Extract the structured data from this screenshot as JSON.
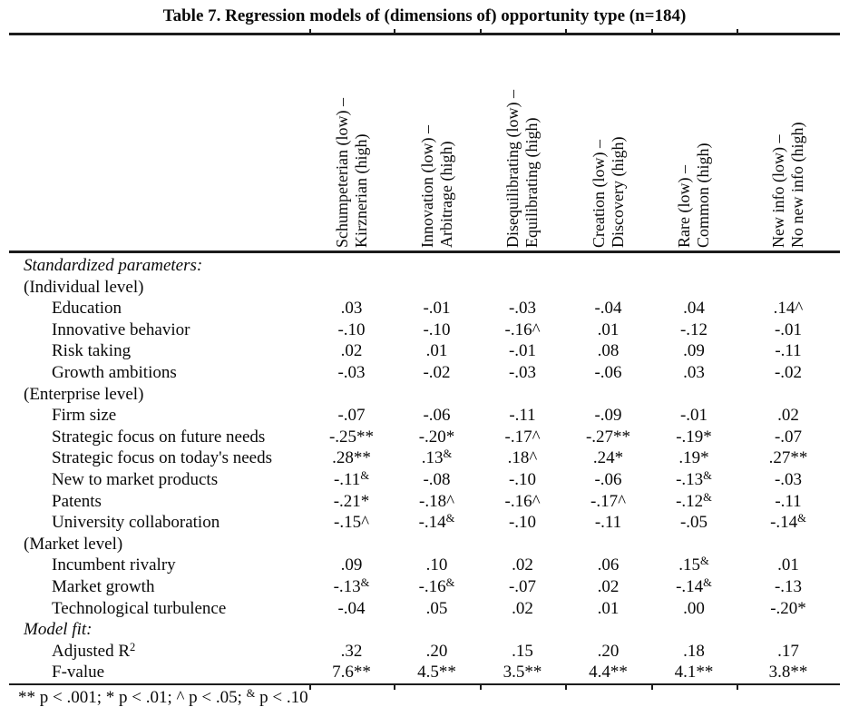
{
  "title": "Table 7. Regression models of (dimensions of) opportunity type (n=184)",
  "table": {
    "column_headers": [
      {
        "line1": "Schumpeterian (low) –",
        "line2": "Kirznerian (high)"
      },
      {
        "line1": "Innovation (low) –",
        "line2": "Arbitrage (high)"
      },
      {
        "line1": "Disequilibrating (low) –",
        "line2": "Equilibrating (high)"
      },
      {
        "line1": "Creation (low) –",
        "line2": "Discovery (high)"
      },
      {
        "line1": "Rare (low) –",
        "line2": "Common (high)"
      },
      {
        "line1": "New info (low) –",
        "line2": "No new info (high)"
      }
    ],
    "rows": [
      {
        "label": "Standardized parameters:",
        "type": "group",
        "values": []
      },
      {
        "label": "(Individual level)",
        "type": "level",
        "values": []
      },
      {
        "label": "Education",
        "type": "var",
        "values": [
          ".03",
          "-.01",
          "-.03",
          "-.04",
          ".04",
          ".14^"
        ]
      },
      {
        "label": "Innovative behavior",
        "type": "var",
        "values": [
          "-.10",
          "-.10",
          "-.16^",
          ".01",
          "-.12",
          "-.01"
        ]
      },
      {
        "label": "Risk taking",
        "type": "var",
        "values": [
          ".02",
          ".01",
          "-.01",
          ".08",
          ".09",
          "-.11"
        ]
      },
      {
        "label": "Growth ambitions",
        "type": "var",
        "values": [
          "-.03",
          "-.02",
          "-.03",
          "-.06",
          ".03",
          "-.02"
        ]
      },
      {
        "label": "(Enterprise level)",
        "type": "level",
        "values": []
      },
      {
        "label": "Firm size",
        "type": "var",
        "values": [
          "-.07",
          "-.06",
          "-.11",
          "-.09",
          "-.01",
          ".02"
        ]
      },
      {
        "label": "Strategic focus on future needs",
        "type": "var",
        "values": [
          "-.25**",
          "-.20*",
          "-.17^",
          "-.27**",
          "-.19*",
          "-.07"
        ]
      },
      {
        "label": "Strategic focus on today's needs",
        "type": "var",
        "values": [
          ".28**",
          ".13&",
          ".18^",
          ".24*",
          ".19*",
          ".27**"
        ]
      },
      {
        "label": "New to market products",
        "type": "var",
        "values": [
          "-.11&",
          "-.08",
          "-.10",
          "-.06",
          "-.13&",
          "-.03"
        ]
      },
      {
        "label": "Patents",
        "type": "var",
        "values": [
          "-.21*",
          "-.18^",
          "-.16^",
          "-.17^",
          "-.12&",
          "-.11"
        ]
      },
      {
        "label": "University collaboration",
        "type": "var",
        "values": [
          "-.15^",
          "-.14&",
          "-.10",
          "-.11",
          "-.05",
          "-.14&"
        ]
      },
      {
        "label": "(Market level)",
        "type": "level",
        "values": []
      },
      {
        "label": "Incumbent rivalry",
        "type": "var",
        "values": [
          ".09",
          ".10",
          ".02",
          ".06",
          ".15&",
          ".01"
        ]
      },
      {
        "label": "Market growth",
        "type": "var",
        "values": [
          "-.13&",
          "-.16&",
          "-.07",
          ".02",
          "-.14&",
          "-.13"
        ]
      },
      {
        "label": "Technological turbulence",
        "type": "var",
        "values": [
          "-.04",
          ".05",
          ".02",
          ".01",
          ".00",
          "-.20*"
        ]
      },
      {
        "label": "Model fit:",
        "type": "group",
        "values": []
      },
      {
        "label": "Adjusted R",
        "label_sup": "2",
        "type": "var",
        "values": [
          ".32",
          ".20",
          ".15",
          ".20",
          ".18",
          ".17"
        ]
      },
      {
        "label": "F-value",
        "type": "var",
        "values": [
          "7.6**",
          "4.5**",
          "3.5**",
          "4.4**",
          "4.1**",
          "3.8**"
        ]
      }
    ],
    "footnote": {
      "pre": "** p < .001; * p < .01; ^ p < .05; ",
      "sup": "&",
      "post": " p < .10"
    }
  }
}
